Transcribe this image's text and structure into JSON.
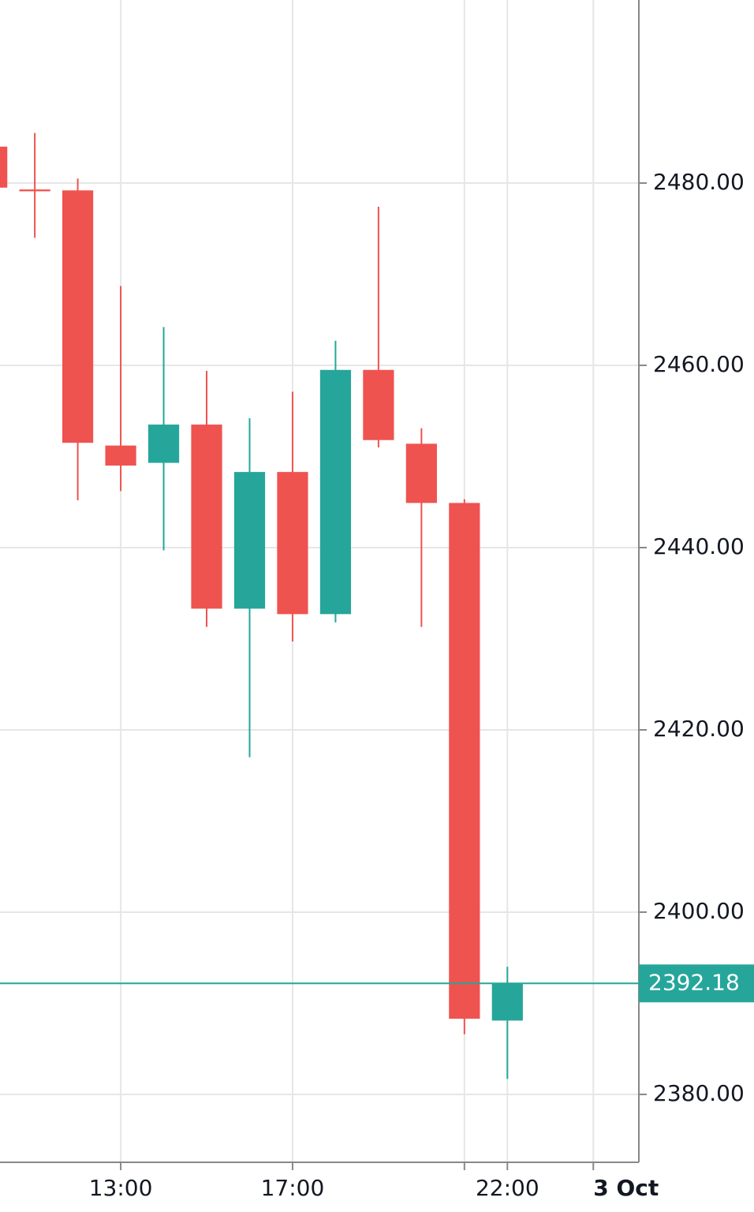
{
  "chart_data": {
    "type": "candlestick",
    "x": [
      10,
      11,
      12,
      13,
      14,
      15,
      16,
      17,
      18,
      19,
      20,
      21,
      22
    ],
    "open": [
      2484.0,
      2479.3,
      2479.2,
      2451.2,
      2449.3,
      2453.5,
      2433.3,
      2448.3,
      2432.7,
      2459.5,
      2451.4,
      2444.9,
      2388.1
    ],
    "high": [
      2484.0,
      2485.5,
      2480.5,
      2468.7,
      2464.2,
      2459.4,
      2454.2,
      2457.1,
      2462.7,
      2477.4,
      2453.1,
      2445.3,
      2394.0
    ],
    "low": [
      2479.5,
      2474.0,
      2445.2,
      2446.2,
      2439.7,
      2431.3,
      2417.0,
      2429.7,
      2431.8,
      2451.0,
      2431.3,
      2386.6,
      2381.7
    ],
    "close": [
      2479.5,
      2479.1,
      2451.5,
      2449.0,
      2453.5,
      2433.3,
      2448.3,
      2432.7,
      2459.5,
      2451.8,
      2444.9,
      2388.3,
      2392.18
    ],
    "up_color": "#26a69a",
    "down_color": "#ef5350",
    "xlim": [
      10.19,
      25.06
    ],
    "xticks": [
      {
        "value": 13,
        "label": "13:00"
      },
      {
        "value": 17,
        "label": "17:00"
      },
      {
        "value": 21,
        "label": null
      },
      {
        "value": 22,
        "label": "22:00"
      },
      {
        "value": 24,
        "label": "3 Oct"
      }
    ],
    "ylim": [
      2372.55,
      2500.09
    ],
    "yticks": [
      {
        "value": 2380,
        "label": "2380.00"
      },
      {
        "value": 2400,
        "label": "2400.00"
      },
      {
        "value": 2420,
        "label": "2420.00"
      },
      {
        "value": 2440,
        "label": "2440.00"
      },
      {
        "value": 2460,
        "label": "2460.00"
      },
      {
        "value": 2480,
        "label": "2480.00"
      }
    ],
    "last_price": 2392.18,
    "grid": true
  }
}
